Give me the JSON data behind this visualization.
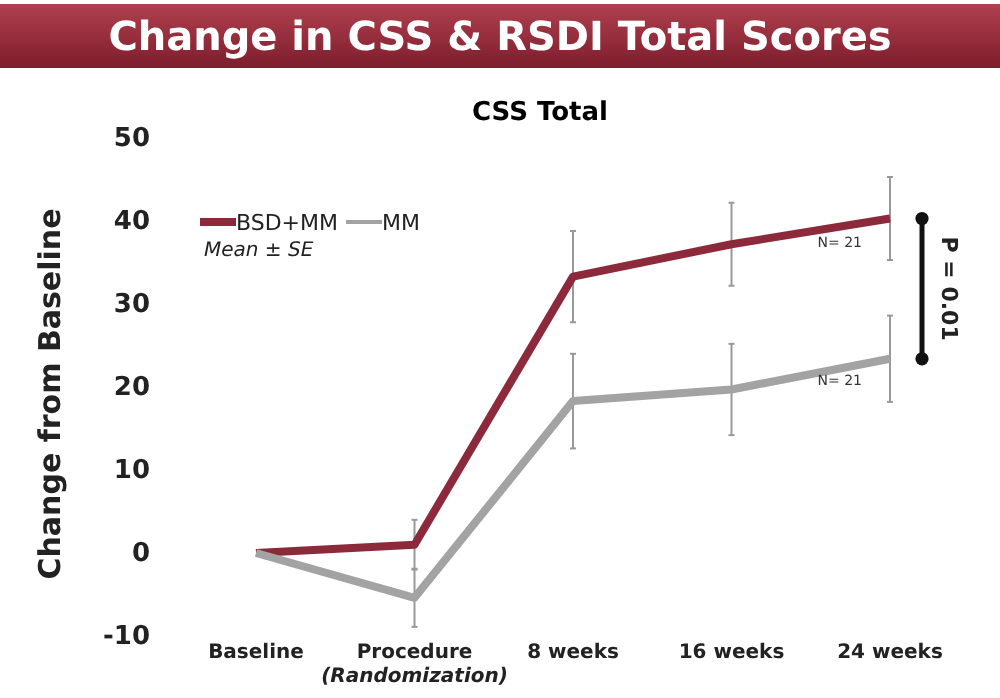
{
  "chart_data": {
    "type": "line",
    "title": "Change in CSS & RSDI Total Scores",
    "subtitle": "CSS Total",
    "ylabel": "Change from Baseline",
    "categories": [
      "Baseline",
      "Procedure\n(Randomization)",
      "8 weeks",
      "16 weeks",
      "24 weeks"
    ],
    "series": [
      {
        "name": "BSD+MM",
        "color": "#8c2a3c",
        "values": [
          0,
          1,
          33.3,
          37.2,
          40.3
        ],
        "errors": [
          null,
          3,
          5.5,
          5,
          5
        ]
      },
      {
        "name": "MM",
        "color": "#a3a3a3",
        "values": [
          0,
          -5.4,
          18.3,
          19.7,
          23.4
        ],
        "errors": [
          null,
          3.5,
          5.7,
          5.5,
          5.2
        ]
      }
    ],
    "ylim": [
      -10,
      50
    ],
    "yticks": [
      -10,
      0,
      10,
      20,
      30,
      40,
      50
    ],
    "legend": "top left",
    "grid": false,
    "annotations": [
      "Mean ± SE",
      "N= 21",
      "N= 21",
      "P = 0.01"
    ]
  }
}
